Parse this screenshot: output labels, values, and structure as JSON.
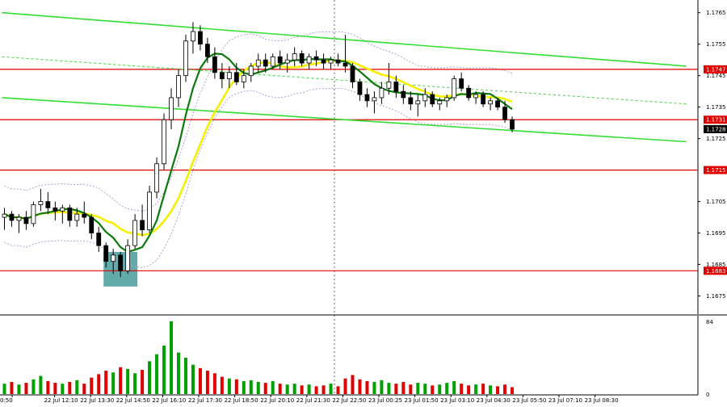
{
  "chart_data": {
    "type": "candlestick",
    "symbol": "EURUSD",
    "price_axis": {
      "ylim": [
        1.167,
        1.1768
      ],
      "ticks": [
        "1.1765",
        "1.1755",
        "1.1745",
        "1.1735",
        "1.1725",
        "1.1705",
        "1.1695",
        "1.1685",
        "1.1675"
      ]
    },
    "volume_axis": {
      "ylim": [
        0,
        84
      ],
      "ticks": [
        "84",
        "0"
      ]
    },
    "x_labels": [
      "0:50",
      "22 Jul 12:10",
      "22 Jul 13:30",
      "22 Jul 14:50",
      "22 Jul 16:10",
      "22 Jul 17:30",
      "22 Jul 18:50",
      "22 Jul 20:10",
      "22 Jul 21:30",
      "22 Jul 22:50",
      "23 Jul 00:25",
      "23 Jul 01:50",
      "23 Jul 03:10",
      "23 Jul 04:30",
      "23 Jul 05:50",
      "23 Jul 07:10",
      "23 Jul 08:30"
    ],
    "horizontal_levels": [
      {
        "price": 1.1747,
        "label": "1.1747",
        "color": "#e00000"
      },
      {
        "price": 1.1731,
        "label": "1.1731",
        "color": "#e00000"
      },
      {
        "price": 1.1715,
        "label": "1.1715",
        "color": "#e00000"
      },
      {
        "price": 1.1683,
        "label": "1.1683",
        "color": "#e00000"
      }
    ],
    "current_price": {
      "price": 1.1728,
      "label": "1.1728"
    },
    "channel": {
      "upper": [
        [
          0,
          1.1765
        ],
        [
          94,
          1.1748
        ]
      ],
      "middle": [
        [
          0,
          1.1751
        ],
        [
          94,
          1.1736
        ]
      ],
      "lower": [
        [
          0,
          1.1738
        ],
        [
          94,
          1.1724
        ]
      ]
    },
    "sma_slow": {
      "name": "",
      "color": "#f5f000"
    },
    "sma_fast": {
      "name": "",
      "color": "#0a7a0a"
    },
    "envelope": {
      "color": "#b0a0d8"
    },
    "highlight_zone": {
      "from_bar": 14,
      "to_bar": 18,
      "price_low": 1.1678,
      "price_high": 1.1689,
      "color": "#2f8f8f"
    },
    "colors": {
      "bull": "#00a000",
      "bear": "#e00000",
      "channel": "#33dd33",
      "background": "#ffffff"
    },
    "candles": [
      [
        1.17,
        1.1703,
        1.1696,
        1.1701
      ],
      [
        1.1701,
        1.1702,
        1.1697,
        1.1699
      ],
      [
        1.1699,
        1.1701,
        1.1695,
        1.17
      ],
      [
        1.17,
        1.1702,
        1.1696,
        1.1698
      ],
      [
        1.1698,
        1.1705,
        1.1697,
        1.1704
      ],
      [
        1.1704,
        1.1709,
        1.1702,
        1.1705
      ],
      [
        1.1705,
        1.1708,
        1.1701,
        1.1703
      ],
      [
        1.1703,
        1.1705,
        1.1699,
        1.1702
      ],
      [
        1.1702,
        1.1704,
        1.1698,
        1.1703
      ],
      [
        1.1703,
        1.1704,
        1.1697,
        1.1699
      ],
      [
        1.1699,
        1.1703,
        1.1697,
        1.1701
      ],
      [
        1.1701,
        1.1705,
        1.1698,
        1.17
      ],
      [
        1.17,
        1.1701,
        1.1693,
        1.1695
      ],
      [
        1.1695,
        1.1697,
        1.1689,
        1.1691
      ],
      [
        1.1691,
        1.1692,
        1.1684,
        1.1686
      ],
      [
        1.1686,
        1.169,
        1.1682,
        1.1688
      ],
      [
        1.1688,
        1.1689,
        1.1681,
        1.1683
      ],
      [
        1.1683,
        1.1693,
        1.1682,
        1.1691
      ],
      [
        1.1691,
        1.1701,
        1.169,
        1.1699
      ],
      [
        1.1699,
        1.1704,
        1.1694,
        1.1696
      ],
      [
        1.1696,
        1.171,
        1.1695,
        1.1708
      ],
      [
        1.1708,
        1.1719,
        1.1706,
        1.1717
      ],
      [
        1.1717,
        1.1733,
        1.1715,
        1.1731
      ],
      [
        1.1731,
        1.1741,
        1.1728,
        1.1738
      ],
      [
        1.1738,
        1.1747,
        1.1735,
        1.1745
      ],
      [
        1.1745,
        1.1758,
        1.1743,
        1.1756
      ],
      [
        1.1756,
        1.1762,
        1.1752,
        1.1759
      ],
      [
        1.1759,
        1.1761,
        1.1753,
        1.1755
      ],
      [
        1.1755,
        1.1757,
        1.1749,
        1.1751
      ],
      [
        1.1751,
        1.1754,
        1.1744,
        1.1746
      ],
      [
        1.1746,
        1.1749,
        1.1741,
        1.1744
      ],
      [
        1.1744,
        1.1748,
        1.1741,
        1.1746
      ],
      [
        1.1746,
        1.1749,
        1.1742,
        1.1743
      ],
      [
        1.1743,
        1.1747,
        1.1741,
        1.1745
      ],
      [
        1.1745,
        1.1749,
        1.1743,
        1.1748
      ],
      [
        1.1748,
        1.1752,
        1.1746,
        1.175
      ],
      [
        1.175,
        1.1752,
        1.1746,
        1.1748
      ],
      [
        1.1748,
        1.1752,
        1.1747,
        1.1751
      ],
      [
        1.1751,
        1.1753,
        1.1747,
        1.1749
      ],
      [
        1.1749,
        1.1752,
        1.1746,
        1.175
      ],
      [
        1.175,
        1.1754,
        1.1748,
        1.1752
      ],
      [
        1.1752,
        1.1753,
        1.1748,
        1.1749
      ],
      [
        1.1749,
        1.1752,
        1.1747,
        1.1751
      ],
      [
        1.1751,
        1.1753,
        1.1748,
        1.175
      ],
      [
        1.175,
        1.1752,
        1.1747,
        1.1749
      ],
      [
        1.1749,
        1.1751,
        1.1747,
        1.175
      ],
      [
        1.175,
        1.1752,
        1.1748,
        1.1749
      ],
      [
        1.1749,
        1.1758,
        1.1746,
        1.1748
      ],
      [
        1.1748,
        1.1749,
        1.1741,
        1.1743
      ],
      [
        1.1743,
        1.1744,
        1.1737,
        1.1739
      ],
      [
        1.1739,
        1.1741,
        1.1735,
        1.1737
      ],
      [
        1.1737,
        1.174,
        1.1733,
        1.1738
      ],
      [
        1.1738,
        1.1743,
        1.1736,
        1.1741
      ],
      [
        1.1741,
        1.1749,
        1.1739,
        1.1743
      ],
      [
        1.1743,
        1.1745,
        1.1738,
        1.174
      ],
      [
        1.174,
        1.1742,
        1.1736,
        1.1738
      ],
      [
        1.1738,
        1.174,
        1.1734,
        1.1736
      ],
      [
        1.1736,
        1.1739,
        1.1732,
        1.1737
      ],
      [
        1.1737,
        1.1741,
        1.1735,
        1.1739
      ],
      [
        1.1739,
        1.174,
        1.1735,
        1.1736
      ],
      [
        1.1736,
        1.1738,
        1.1734,
        1.1737
      ],
      [
        1.1737,
        1.1739,
        1.1735,
        1.1738
      ],
      [
        1.1738,
        1.1745,
        1.1737,
        1.1744
      ],
      [
        1.1744,
        1.1746,
        1.174,
        1.1741
      ],
      [
        1.1741,
        1.1742,
        1.1737,
        1.1738
      ],
      [
        1.1738,
        1.174,
        1.1736,
        1.1739
      ],
      [
        1.1739,
        1.174,
        1.1735,
        1.1736
      ],
      [
        1.1736,
        1.1738,
        1.1734,
        1.1737
      ],
      [
        1.1737,
        1.1738,
        1.1734,
        1.1735
      ],
      [
        1.1735,
        1.1737,
        1.173,
        1.1731
      ],
      [
        1.1731,
        1.1732,
        1.1727,
        1.1728
      ]
    ],
    "volumes": [
      12,
      14,
      11,
      13,
      17,
      21,
      15,
      13,
      12,
      14,
      16,
      12,
      19,
      23,
      27,
      25,
      31,
      29,
      24,
      28,
      38,
      46,
      56,
      84,
      48,
      42,
      34,
      30,
      27,
      24,
      20,
      18,
      17,
      15,
      16,
      14,
      13,
      15,
      12,
      11,
      12,
      10,
      11,
      9,
      10,
      12,
      9,
      18,
      22,
      17,
      15,
      14,
      16,
      13,
      12,
      14,
      11,
      13,
      12,
      10,
      11,
      13,
      15,
      12,
      10,
      11,
      12,
      10,
      9,
      11,
      8
    ]
  }
}
